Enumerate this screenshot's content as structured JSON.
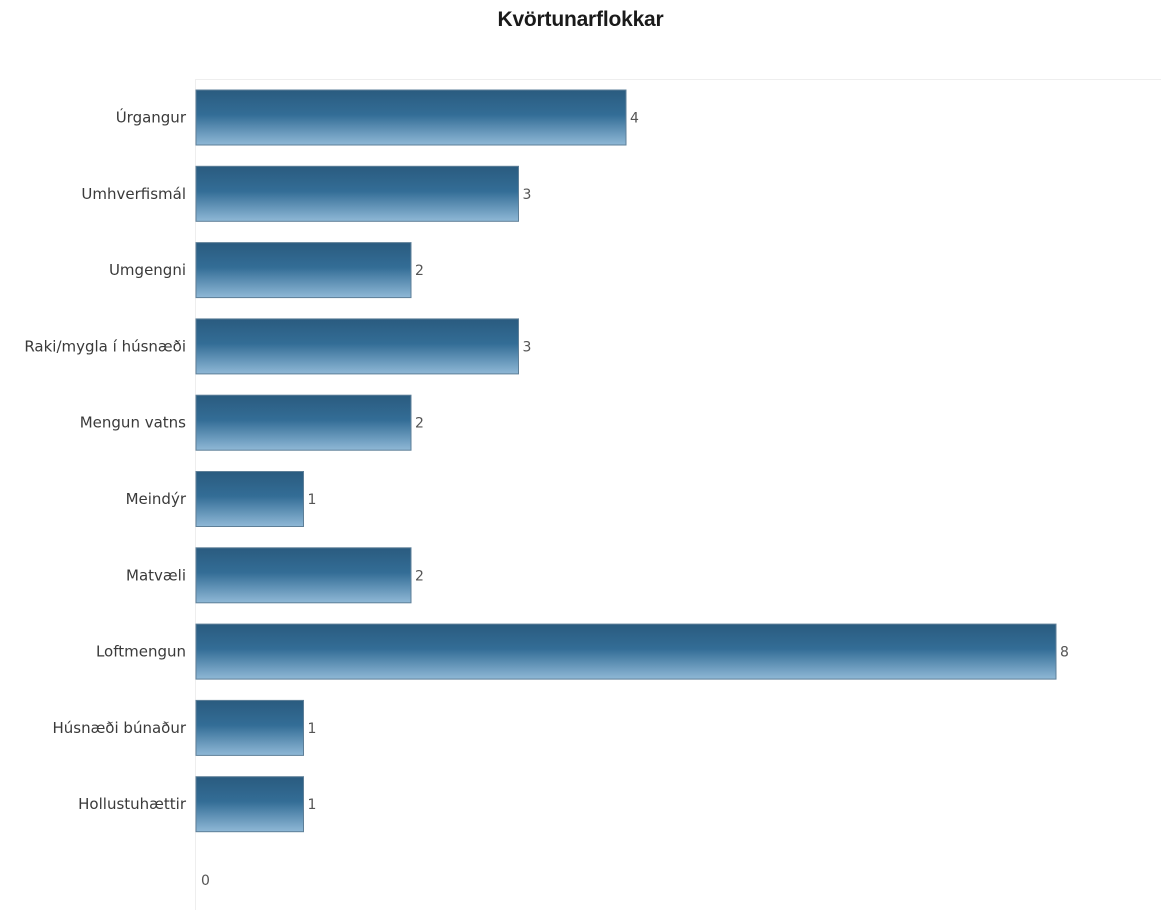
{
  "chart_data": {
    "type": "bar",
    "orientation": "horizontal",
    "title": "Kvörtunarflokkar",
    "categories": [
      "Úrgangur",
      "Umhverfismál",
      "Umgengni",
      "Raki/mygla í húsnæði",
      "Mengun vatns",
      "Meindýr",
      "Matvæli",
      "Loftmengun",
      "Húsnæði búnaður",
      "Hollustuhættir"
    ],
    "values": [
      4,
      3,
      2,
      3,
      2,
      1,
      2,
      8,
      1,
      1
    ],
    "value_labels": [
      "4",
      "3",
      "2",
      "3",
      "2",
      "1",
      "2",
      "8",
      "1",
      "1"
    ],
    "x_ticks": [
      "0"
    ],
    "xlim": [
      0,
      9
    ],
    "grid": false,
    "legend": "none",
    "colors": {
      "bar_top": "#2a5b7f",
      "bar_bottom": "#8fb8d6",
      "bar_border": "#5e7f98"
    }
  }
}
